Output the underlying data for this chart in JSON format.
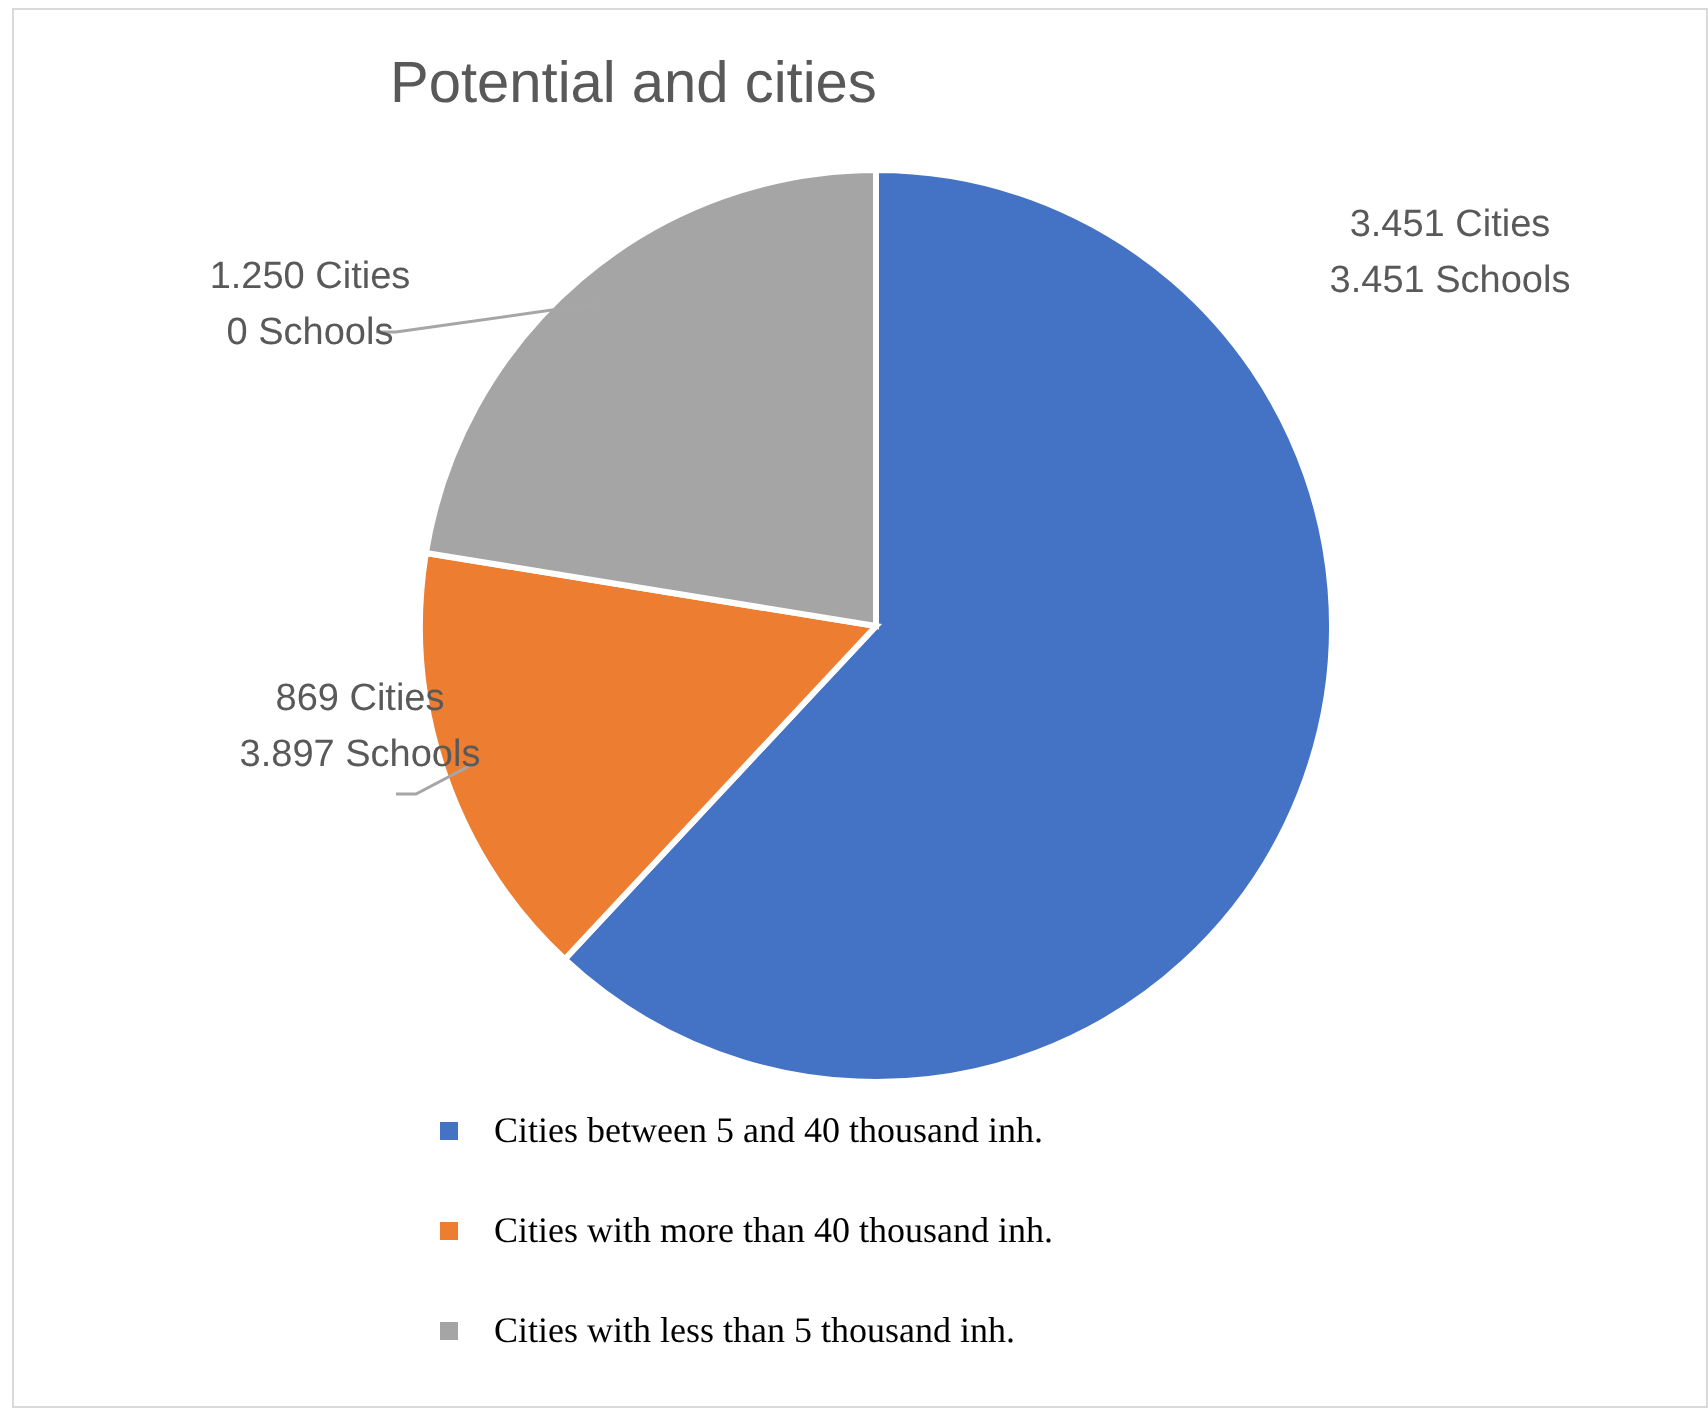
{
  "chart_data": {
    "type": "pie",
    "title": "Potential and cities",
    "categories": [
      "Cities between 5 and 40 thousand inh.",
      "Cities with more than 40 thousand inh.",
      "Cities with less than 5 thousand inh."
    ],
    "values": [
      3451,
      869,
      1250
    ],
    "colors": [
      "#4472c4",
      "#ed7d31",
      "#a5a5a5"
    ],
    "value_labels": [
      "3.451 Cities\n3.451 Schools",
      "869 Cities\n3.897 Schools",
      "1.250 Cities\n0 Schools"
    ],
    "legend": "bottom"
  }
}
